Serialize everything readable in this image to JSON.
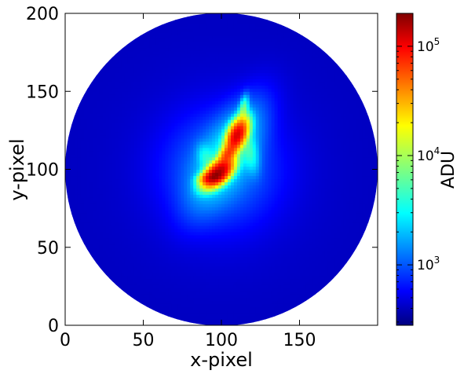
{
  "chart_data": {
    "type": "heatmap",
    "title": "",
    "xlabel": "x-pixel",
    "ylabel": "y-pixel",
    "xlim": [
      0,
      200
    ],
    "ylim": [
      0,
      200
    ],
    "x_ticks": [
      0,
      50,
      100,
      150
    ],
    "y_ticks": [
      0,
      50,
      100,
      150,
      200
    ],
    "x_tick_labels": [
      "0",
      "50",
      "100",
      "150"
    ],
    "y_tick_labels": [
      "0",
      "50",
      "100",
      "150",
      "200"
    ],
    "colormap": "jet",
    "color_scale": "log",
    "colorbar": {
      "label": "ADU",
      "range": [
        280,
        200000
      ],
      "ticks": [
        {
          "value": 1000,
          "base": "10",
          "exp": "3"
        },
        {
          "value": 10000,
          "base": "10",
          "exp": "4"
        },
        {
          "value": 100000,
          "base": "10",
          "exp": "5"
        }
      ]
    },
    "mask": {
      "shape": "circle",
      "center": [
        100,
        100
      ],
      "radius": 100
    },
    "background_level": 420,
    "features": [
      {
        "description": "bright core lower",
        "center": [
          98,
          98
        ],
        "peak": 150000
      },
      {
        "description": "bright core upper",
        "center": [
          110,
          122
        ],
        "peak": 110000
      },
      {
        "description": "spur top",
        "center": [
          114,
          138
        ],
        "peak": 6000
      }
    ]
  }
}
